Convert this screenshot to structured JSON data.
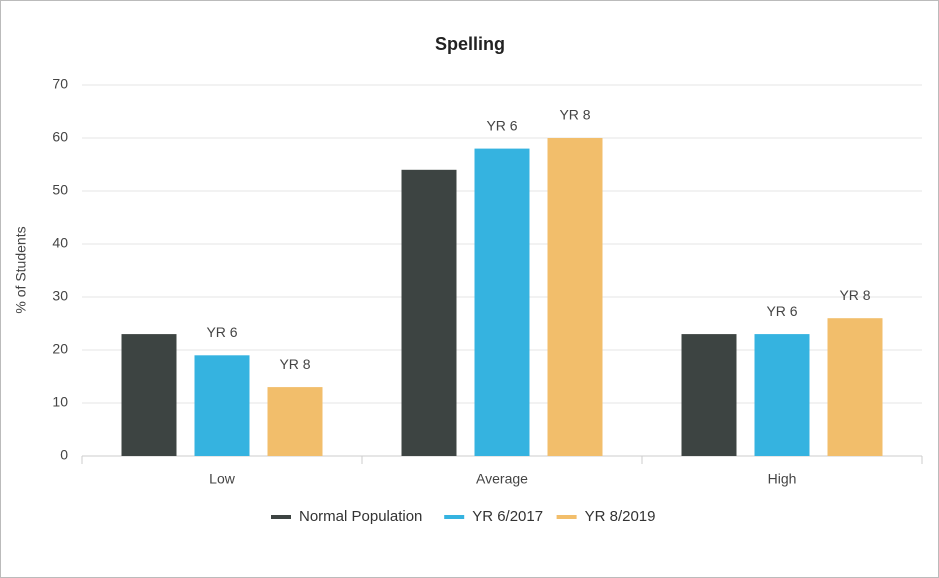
{
  "chart_data": {
    "type": "bar",
    "title": "Spelling",
    "y_label": "% of Students",
    "categories": [
      "Low",
      "Average",
      "High"
    ],
    "series": [
      {
        "name": "Normal Population",
        "color": "#3d4442",
        "values": [
          23,
          54,
          23
        ]
      },
      {
        "name": "YR 6/2017",
        "color": "#35b3e0",
        "values": [
          19,
          58,
          23
        ],
        "bar_label": "YR 6"
      },
      {
        "name": "YR 8/2019",
        "color": "#f2be6b",
        "values": [
          13,
          60,
          26
        ],
        "bar_label": "YR 8"
      }
    ],
    "ylim": [
      0,
      70
    ],
    "yticks": [
      0,
      10,
      20,
      30,
      40,
      50,
      60,
      70
    ],
    "grid": true,
    "legend": "bottom"
  }
}
